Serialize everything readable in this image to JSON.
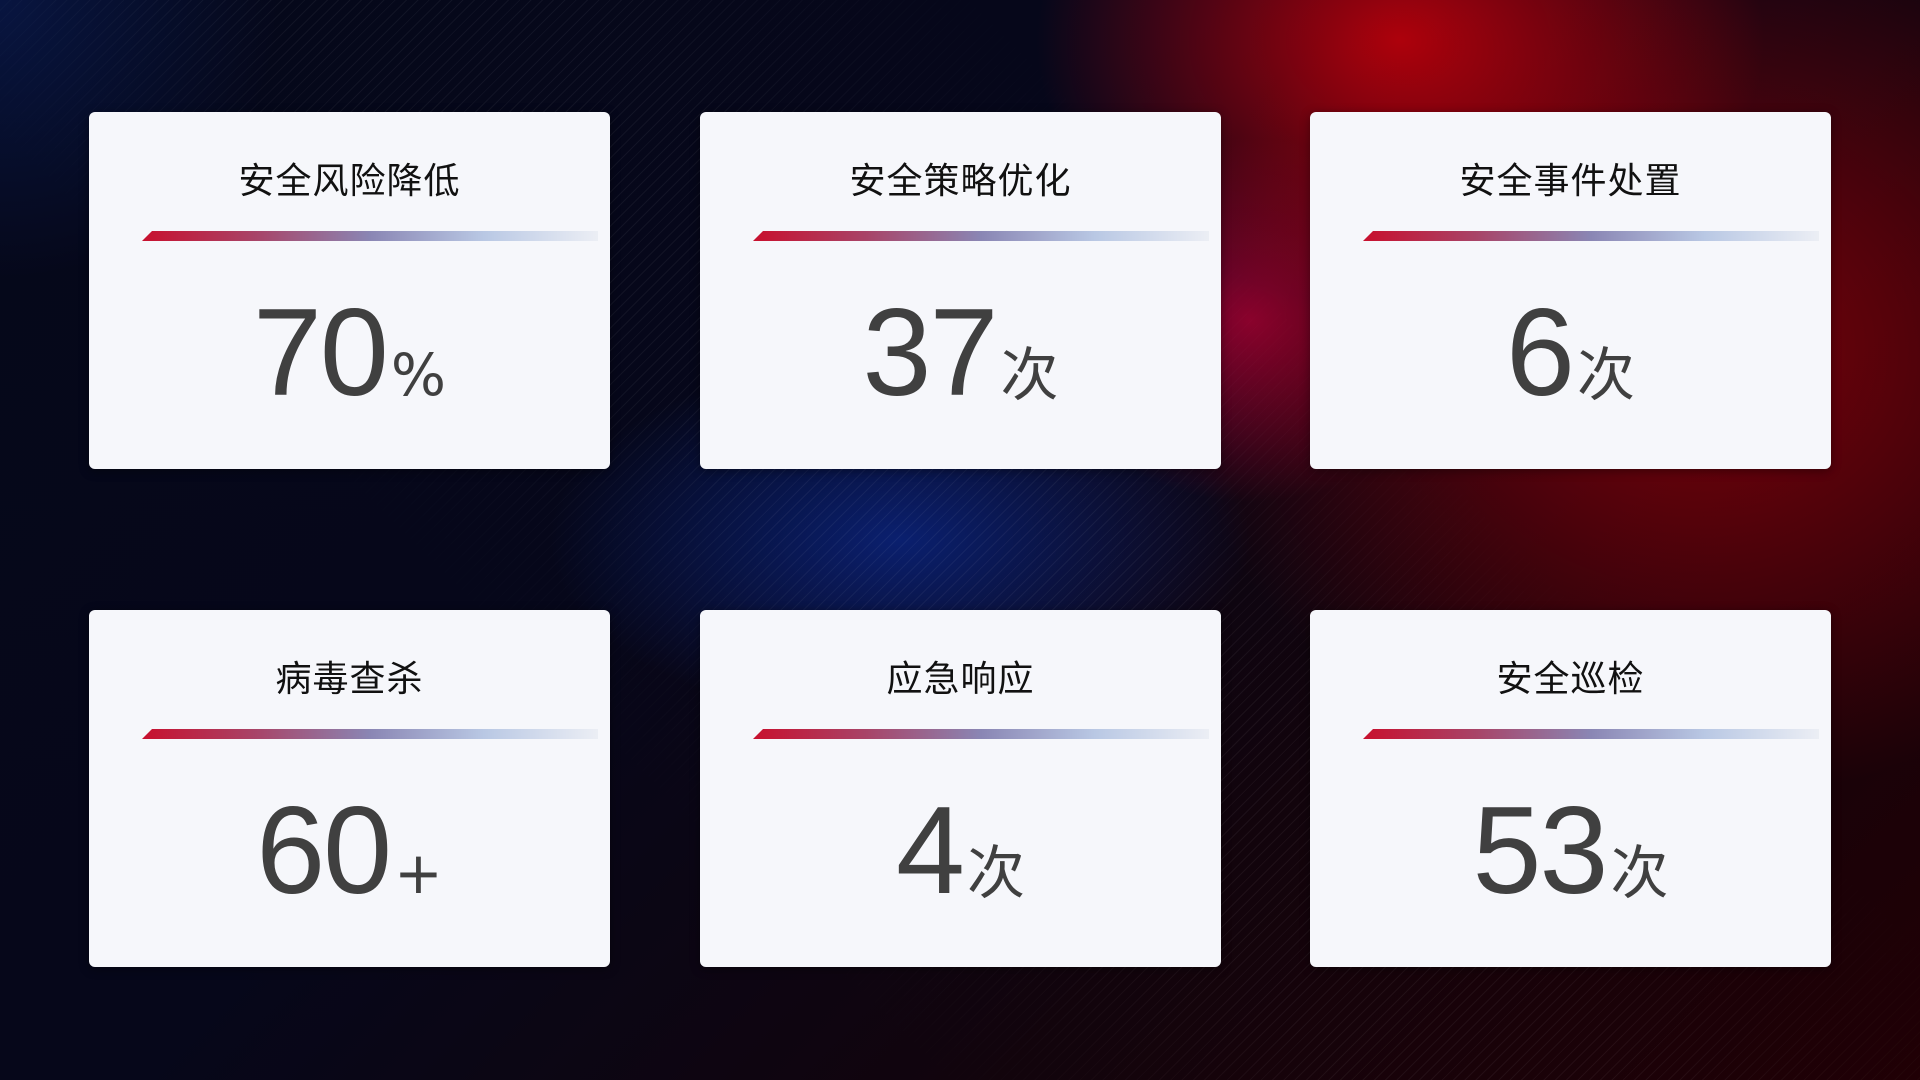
{
  "cards": [
    {
      "title": "安全风险降低",
      "value": "70",
      "unit": "%"
    },
    {
      "title": "安全策略优化",
      "value": "37",
      "unit": "次"
    },
    {
      "title": "安全事件处置",
      "value": "6",
      "unit": "次"
    },
    {
      "title": "病毒查杀",
      "value": "60",
      "unit": "+"
    },
    {
      "title": "应急响应",
      "value": "4",
      "unit": "次"
    },
    {
      "title": "安全巡检",
      "value": "53",
      "unit": "次"
    }
  ],
  "colors": {
    "accent_red": "#c8102e",
    "accent_blue": "#8a86b4",
    "card_bg": "#f6f7fb",
    "value_text": "#404040"
  }
}
